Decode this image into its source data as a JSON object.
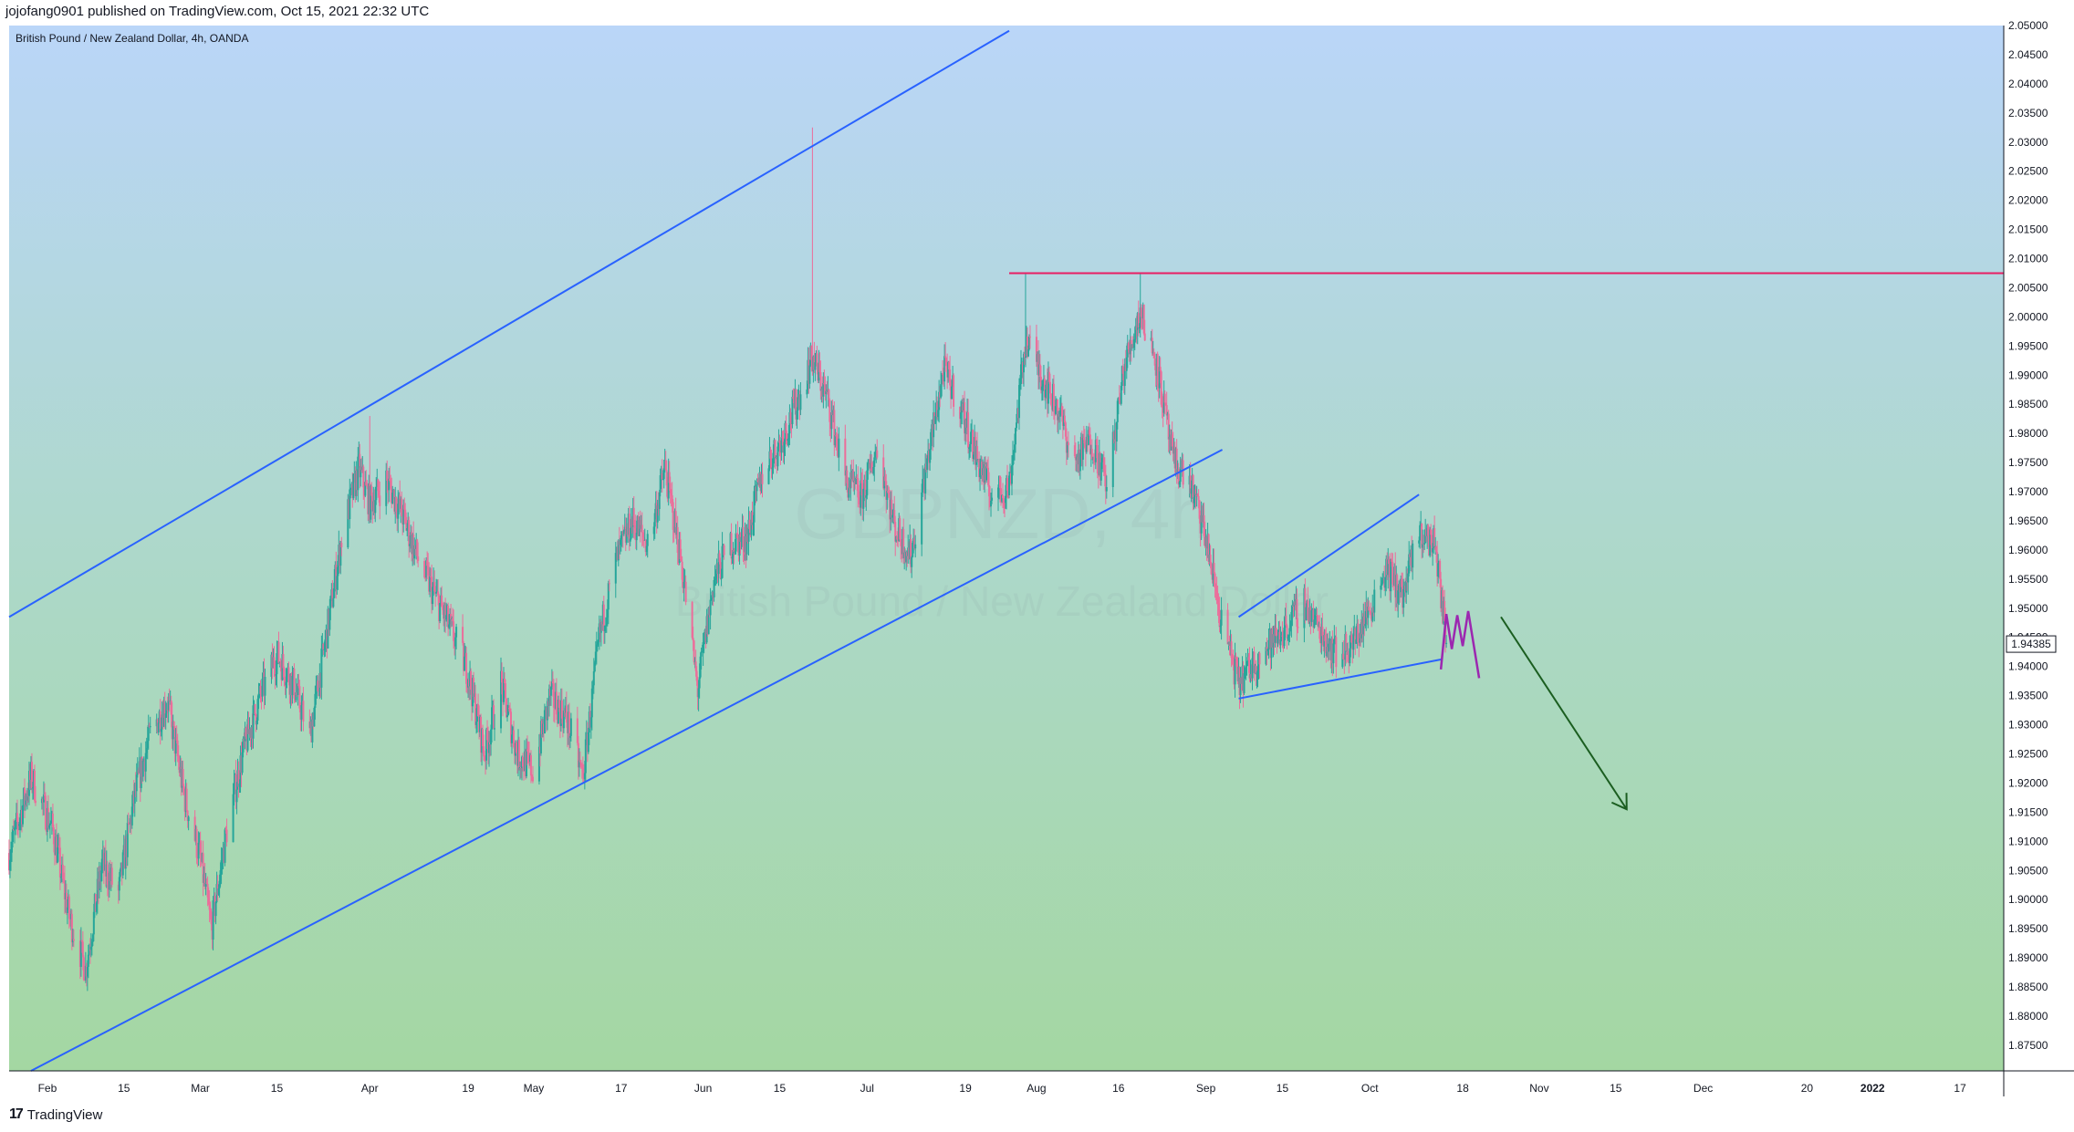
{
  "publish_header": "jojofang0901 published on TradingView.com, Oct 15, 2021 22:32 UTC",
  "footer_brand": "TradingView",
  "chart_data": {
    "type": "candlestick",
    "title": "British Pound / New Zealand Dollar, 4h, OANDA",
    "watermark_symbol": "GBPNZD, 4h",
    "watermark_name": "British Pound / New Zealand Dollar",
    "price_range": [
      1.8706,
      2.05
    ],
    "y_ticks": [
      "2.05000",
      "2.04500",
      "2.04000",
      "2.03500",
      "2.03000",
      "2.02500",
      "2.02000",
      "2.01500",
      "2.01000",
      "2.00500",
      "2.00000",
      "1.99500",
      "1.99000",
      "1.98500",
      "1.98000",
      "1.97500",
      "1.97000",
      "1.96500",
      "1.96000",
      "1.95500",
      "1.95000",
      "1.94500",
      "1.94000",
      "1.93500",
      "1.93000",
      "1.92500",
      "1.92000",
      "1.91500",
      "1.91000",
      "1.90500",
      "1.90000",
      "1.89500",
      "1.89000",
      "1.88500",
      "1.88000",
      "1.87500"
    ],
    "x_ticks": [
      "Feb",
      "15",
      "Mar",
      "15",
      "Apr",
      "19",
      "May",
      "17",
      "Jun",
      "15",
      "Jul",
      "19",
      "Aug",
      "16",
      "Sep",
      "15",
      "Oct",
      "18",
      "Nov",
      "15",
      "Dec",
      "20",
      "2022",
      "17"
    ],
    "x_tick_dates": [
      "2021-02-01",
      "2021-02-15",
      "2021-03-01",
      "2021-03-15",
      "2021-04-01",
      "2021-04-19",
      "2021-05-01",
      "2021-05-17",
      "2021-06-01",
      "2021-06-15",
      "2021-07-01",
      "2021-07-19",
      "2021-08-01",
      "2021-08-16",
      "2021-09-01",
      "2021-09-15",
      "2021-10-01",
      "2021-10-18",
      "2021-11-01",
      "2021-11-15",
      "2021-12-01",
      "2021-12-20",
      "2022-01-01",
      "2022-01-17"
    ],
    "current_price": "1.94385",
    "path": [
      [
        "2021-01-25",
        1.908
      ],
      [
        "2021-01-29",
        1.921
      ],
      [
        "2021-02-02",
        1.912
      ],
      [
        "2021-02-05",
        1.897
      ],
      [
        "2021-02-08",
        1.888
      ],
      [
        "2021-02-11",
        1.906
      ],
      [
        "2021-02-14",
        1.901
      ],
      [
        "2021-02-17",
        1.918
      ],
      [
        "2021-02-20",
        1.929
      ],
      [
        "2021-02-23",
        1.934
      ],
      [
        "2021-02-26",
        1.918
      ],
      [
        "2021-03-01",
        1.907
      ],
      [
        "2021-03-03",
        1.895
      ],
      [
        "2021-03-06",
        1.913
      ],
      [
        "2021-03-09",
        1.926
      ],
      [
        "2021-03-12",
        1.935
      ],
      [
        "2021-03-15",
        1.942
      ],
      [
        "2021-03-18",
        1.937
      ],
      [
        "2021-03-21",
        1.928
      ],
      [
        "2021-03-24",
        1.945
      ],
      [
        "2021-03-27",
        1.963
      ],
      [
        "2021-03-30",
        1.974
      ],
      [
        "2021-04-01",
        1.968
      ],
      [
        "2021-04-04",
        1.972
      ],
      [
        "2021-04-07",
        1.966
      ],
      [
        "2021-04-10",
        1.958
      ],
      [
        "2021-04-13",
        1.952
      ],
      [
        "2021-04-16",
        1.946
      ],
      [
        "2021-04-19",
        1.939
      ],
      [
        "2021-04-22",
        1.925
      ],
      [
        "2021-04-25",
        1.937
      ],
      [
        "2021-04-28",
        1.925
      ],
      [
        "2021-05-01",
        1.922
      ],
      [
        "2021-05-04",
        1.935
      ],
      [
        "2021-05-07",
        1.931
      ],
      [
        "2021-05-10",
        1.921
      ],
      [
        "2021-05-13",
        1.945
      ],
      [
        "2021-05-16",
        1.958
      ],
      [
        "2021-05-19",
        1.965
      ],
      [
        "2021-05-22",
        1.961
      ],
      [
        "2021-05-25",
        1.974
      ],
      [
        "2021-05-28",
        1.958
      ],
      [
        "2021-05-31",
        1.936
      ],
      [
        "2021-06-03",
        1.955
      ],
      [
        "2021-06-06",
        1.961
      ],
      [
        "2021-06-09",
        1.962
      ],
      [
        "2021-06-12",
        1.974
      ],
      [
        "2021-06-15",
        1.978
      ],
      [
        "2021-06-18",
        1.985
      ],
      [
        "2021-06-21",
        1.993
      ],
      [
        "2021-06-24",
        1.985
      ],
      [
        "2021-06-27",
        1.972
      ],
      [
        "2021-06-30",
        1.969
      ],
      [
        "2021-07-03",
        1.978
      ],
      [
        "2021-07-06",
        1.964
      ],
      [
        "2021-07-09",
        1.959
      ],
      [
        "2021-07-12",
        1.975
      ],
      [
        "2021-07-15",
        1.991
      ],
      [
        "2021-07-18",
        1.985
      ],
      [
        "2021-07-21",
        1.976
      ],
      [
        "2021-07-24",
        1.969
      ],
      [
        "2021-07-27",
        1.971
      ],
      [
        "2021-07-30",
        1.996
      ],
      [
        "2021-08-02",
        1.99
      ],
      [
        "2021-08-05",
        1.984
      ],
      [
        "2021-08-08",
        1.975
      ],
      [
        "2021-08-11",
        1.979
      ],
      [
        "2021-08-14",
        1.971
      ],
      [
        "2021-08-17",
        1.991
      ],
      [
        "2021-08-20",
        2.001
      ],
      [
        "2021-08-23",
        1.992
      ],
      [
        "2021-08-26",
        1.975
      ],
      [
        "2021-08-29",
        1.972
      ],
      [
        "2021-09-01",
        1.962
      ],
      [
        "2021-09-04",
        1.947
      ],
      [
        "2021-09-07",
        1.937
      ],
      [
        "2021-09-10",
        1.941
      ],
      [
        "2021-09-13",
        1.944
      ],
      [
        "2021-09-16",
        1.947
      ],
      [
        "2021-09-19",
        1.951
      ],
      [
        "2021-09-22",
        1.946
      ],
      [
        "2021-09-25",
        1.942
      ],
      [
        "2021-09-28",
        1.944
      ],
      [
        "2021-10-01",
        1.95
      ],
      [
        "2021-10-04",
        1.957
      ],
      [
        "2021-10-07",
        1.952
      ],
      [
        "2021-10-10",
        1.963
      ],
      [
        "2021-10-13",
        1.961
      ],
      [
        "2021-10-15",
        1.944
      ]
    ],
    "wick_peaks": [
      [
        "2021-06-21",
        2.0325
      ],
      [
        "2021-07-30",
        2.0075
      ],
      [
        "2021-08-20",
        2.0075
      ],
      [
        "2021-04-01",
        1.983
      ],
      [
        "2021-02-08",
        1.886
      ]
    ],
    "drawings": [
      {
        "kind": "channel-upper",
        "color": "#2962ff",
        "from": [
          "2021-01-25",
          1.9485
        ],
        "to": [
          "2021-07-27",
          2.0491
        ]
      },
      {
        "kind": "channel-lower",
        "color": "#2962ff",
        "from": [
          "2021-01-29",
          1.8706
        ],
        "to": [
          "2021-09-04",
          1.9772
        ]
      },
      {
        "kind": "resistance",
        "color": "#e91e63",
        "price": 2.0075,
        "from": "2021-07-27"
      },
      {
        "kind": "wedge-upper",
        "color": "#2962ff",
        "from": [
          "2021-09-07",
          1.9485
        ],
        "to": [
          "2021-10-10",
          1.9695
        ]
      },
      {
        "kind": "wedge-lower",
        "color": "#2962ff",
        "from": [
          "2021-09-07",
          1.9345
        ],
        "to": [
          "2021-10-14",
          1.9412
        ]
      },
      {
        "kind": "projection",
        "color": "#9c27b0",
        "points": [
          [
            "2021-10-14",
            1.9395
          ],
          [
            "2021-10-15",
            1.949
          ],
          [
            "2021-10-16",
            1.943
          ],
          [
            "2021-10-17",
            1.9488
          ],
          [
            "2021-10-18",
            1.9435
          ],
          [
            "2021-10-19",
            1.9495
          ],
          [
            "2021-10-21",
            1.938
          ]
        ]
      },
      {
        "kind": "arrow",
        "color": "#1b5e20",
        "from": [
          "2021-10-25",
          1.9485
        ],
        "to": [
          "2021-11-17",
          1.9155
        ]
      }
    ]
  }
}
